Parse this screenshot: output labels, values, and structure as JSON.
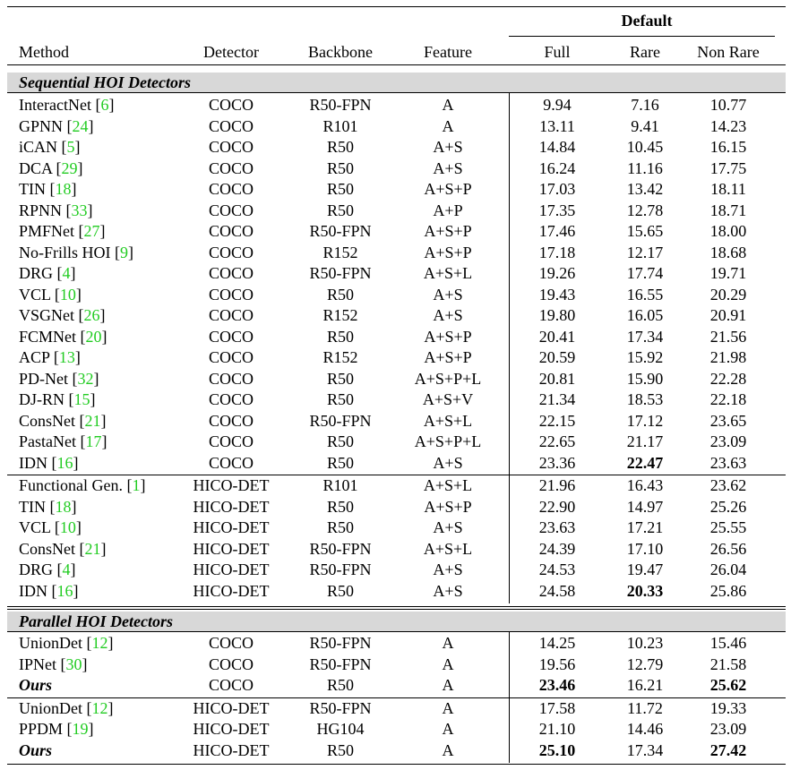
{
  "table": {
    "group_header": "Default",
    "columns": [
      "Method",
      "Detector",
      "Backbone",
      "Feature",
      "Full",
      "Rare",
      "Non Rare"
    ],
    "sections": [
      {
        "title": "Sequential HOI Detectors",
        "groups": [
          [
            {
              "method": "InteractNet",
              "ref": "6",
              "detector": "COCO",
              "backbone": "R50-FPN",
              "feature": "A",
              "full": "9.94",
              "rare": "7.16",
              "nonrare": "10.77"
            },
            {
              "method": "GPNN",
              "ref": "24",
              "detector": "COCO",
              "backbone": "R101",
              "feature": "A",
              "full": "13.11",
              "rare": "9.41",
              "nonrare": "14.23"
            },
            {
              "method": "iCAN",
              "ref": "5",
              "detector": "COCO",
              "backbone": "R50",
              "feature": "A+S",
              "full": "14.84",
              "rare": "10.45",
              "nonrare": "16.15"
            },
            {
              "method": "DCA",
              "ref": "29",
              "detector": "COCO",
              "backbone": "R50",
              "feature": "A+S",
              "full": "16.24",
              "rare": "11.16",
              "nonrare": "17.75"
            },
            {
              "method": "TIN",
              "ref": "18",
              "detector": "COCO",
              "backbone": "R50",
              "feature": "A+S+P",
              "full": "17.03",
              "rare": "13.42",
              "nonrare": "18.11"
            },
            {
              "method": "RPNN",
              "ref": "33",
              "detector": "COCO",
              "backbone": "R50",
              "feature": "A+P",
              "full": "17.35",
              "rare": "12.78",
              "nonrare": "18.71"
            },
            {
              "method": "PMFNet",
              "ref": "27",
              "detector": "COCO",
              "backbone": "R50-FPN",
              "feature": "A+S+P",
              "full": "17.46",
              "rare": "15.65",
              "nonrare": "18.00"
            },
            {
              "method": "No-Frills HOI",
              "ref": "9",
              "detector": "COCO",
              "backbone": "R152",
              "feature": "A+S+P",
              "full": "17.18",
              "rare": "12.17",
              "nonrare": "18.68"
            },
            {
              "method": "DRG",
              "ref": "4",
              "detector": "COCO",
              "backbone": "R50-FPN",
              "feature": "A+S+L",
              "full": "19.26",
              "rare": "17.74",
              "nonrare": "19.71"
            },
            {
              "method": "VCL",
              "ref": "10",
              "detector": "COCO",
              "backbone": "R50",
              "feature": "A+S",
              "full": "19.43",
              "rare": "16.55",
              "nonrare": "20.29"
            },
            {
              "method": "VSGNet",
              "ref": "26",
              "detector": "COCO",
              "backbone": "R152",
              "feature": "A+S",
              "full": "19.80",
              "rare": "16.05",
              "nonrare": "20.91"
            },
            {
              "method": "FCMNet",
              "ref": "20",
              "detector": "COCO",
              "backbone": "R50",
              "feature": "A+S+P",
              "full": "20.41",
              "rare": "17.34",
              "nonrare": "21.56"
            },
            {
              "method": "ACP",
              "ref": "13",
              "detector": "COCO",
              "backbone": "R152",
              "feature": "A+S+P",
              "full": "20.59",
              "rare": "15.92",
              "nonrare": "21.98"
            },
            {
              "method": "PD-Net",
              "ref": "32",
              "detector": "COCO",
              "backbone": "R50",
              "feature": "A+S+P+L",
              "full": "20.81",
              "rare": "15.90",
              "nonrare": "22.28"
            },
            {
              "method": "DJ-RN",
              "ref": "15",
              "detector": "COCO",
              "backbone": "R50",
              "feature": "A+S+V",
              "full": "21.34",
              "rare": "18.53",
              "nonrare": "22.18"
            },
            {
              "method": "ConsNet",
              "ref": "21",
              "detector": "COCO",
              "backbone": "R50-FPN",
              "feature": "A+S+L",
              "full": "22.15",
              "rare": "17.12",
              "nonrare": "23.65"
            },
            {
              "method": "PastaNet",
              "ref": "17",
              "detector": "COCO",
              "backbone": "R50",
              "feature": "A+S+P+L",
              "full": "22.65",
              "rare": "21.17",
              "nonrare": "23.09"
            },
            {
              "method": "IDN",
              "ref": "16",
              "detector": "COCO",
              "backbone": "R50",
              "feature": "A+S",
              "full": "23.36",
              "rare": "22.47",
              "nonrare": "23.63",
              "bold": [
                "rare"
              ]
            }
          ],
          [
            {
              "method": "Functional Gen.",
              "ref": "1",
              "detector": "HICO-DET",
              "backbone": "R101",
              "feature": "A+S+L",
              "full": "21.96",
              "rare": "16.43",
              "nonrare": "23.62"
            },
            {
              "method": "TIN",
              "ref": "18",
              "detector": "HICO-DET",
              "backbone": "R50",
              "feature": "A+S+P",
              "full": "22.90",
              "rare": "14.97",
              "nonrare": "25.26"
            },
            {
              "method": "VCL",
              "ref": "10",
              "detector": "HICO-DET",
              "backbone": "R50",
              "feature": "A+S",
              "full": "23.63",
              "rare": "17.21",
              "nonrare": "25.55"
            },
            {
              "method": "ConsNet",
              "ref": "21",
              "detector": "HICO-DET",
              "backbone": "R50-FPN",
              "feature": "A+S+L",
              "full": "24.39",
              "rare": "17.10",
              "nonrare": "26.56"
            },
            {
              "method": "DRG",
              "ref": "4",
              "detector": "HICO-DET",
              "backbone": "R50-FPN",
              "feature": "A+S",
              "full": "24.53",
              "rare": "19.47",
              "nonrare": "26.04"
            },
            {
              "method": "IDN",
              "ref": "16",
              "detector": "HICO-DET",
              "backbone": "R50",
              "feature": "A+S",
              "full": "24.58",
              "rare": "20.33",
              "nonrare": "25.86",
              "bold": [
                "rare"
              ]
            }
          ]
        ]
      },
      {
        "title": "Parallel HOI Detectors",
        "groups": [
          [
            {
              "method": "UnionDet",
              "ref": "12",
              "detector": "COCO",
              "backbone": "R50-FPN",
              "feature": "A",
              "full": "14.25",
              "rare": "10.23",
              "nonrare": "15.46"
            },
            {
              "method": "IPNet",
              "ref": "30",
              "detector": "COCO",
              "backbone": "R50-FPN",
              "feature": "A",
              "full": "19.56",
              "rare": "12.79",
              "nonrare": "21.58"
            },
            {
              "method": "Ours",
              "ref": "",
              "ours": true,
              "detector": "COCO",
              "backbone": "R50",
              "feature": "A",
              "full": "23.46",
              "rare": "16.21",
              "nonrare": "25.62",
              "bold": [
                "full",
                "nonrare"
              ]
            }
          ],
          [
            {
              "method": "UnionDet",
              "ref": "12",
              "detector": "HICO-DET",
              "backbone": "R50-FPN",
              "feature": "A",
              "full": "17.58",
              "rare": "11.72",
              "nonrare": "19.33"
            },
            {
              "method": "PPDM",
              "ref": "19",
              "detector": "HICO-DET",
              "backbone": "HG104",
              "feature": "A",
              "full": "21.10",
              "rare": "14.46",
              "nonrare": "23.09"
            },
            {
              "method": "Ours",
              "ref": "",
              "ours": true,
              "detector": "HICO-DET",
              "backbone": "R50",
              "feature": "A",
              "full": "25.10",
              "rare": "17.34",
              "nonrare": "27.42",
              "bold": [
                "full",
                "nonrare"
              ]
            }
          ]
        ]
      }
    ]
  }
}
